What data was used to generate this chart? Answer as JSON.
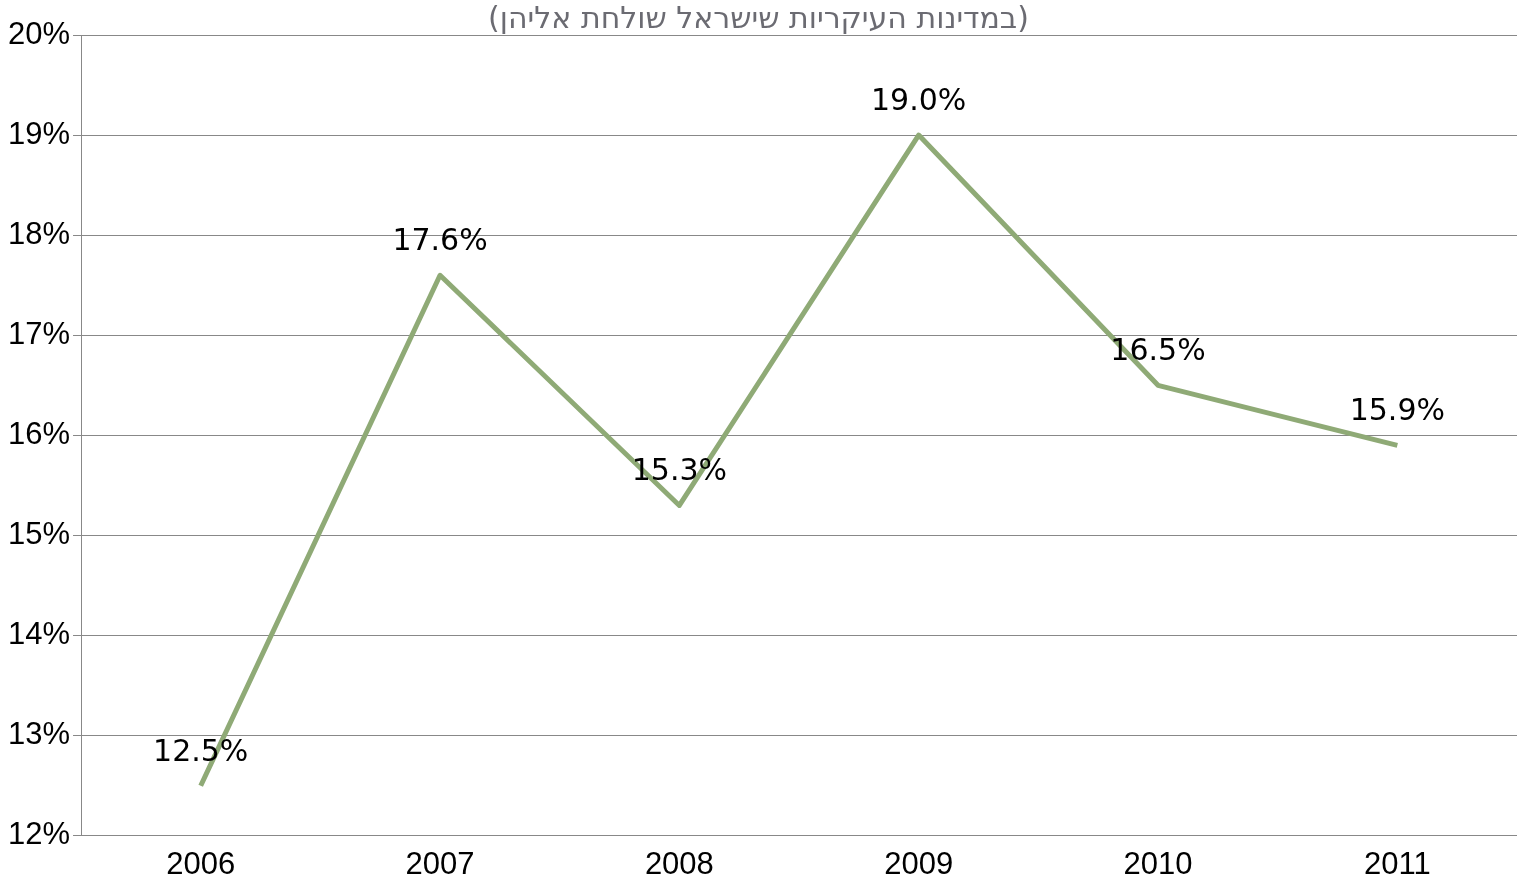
{
  "chart_data": {
    "type": "line",
    "subtitle": "(במדינות העיקריות שישראל שולחת אליהן)",
    "categories": [
      "2006",
      "2007",
      "2008",
      "2009",
      "2010",
      "2011"
    ],
    "series": [
      {
        "color": "#8faa76",
        "values": [
          12.5,
          17.6,
          15.3,
          19.0,
          16.5,
          15.9
        ],
        "value_labels": [
          "12.5%",
          "17.6%",
          "15.3%",
          "19.0%",
          "16.5%",
          "15.9%"
        ]
      }
    ],
    "ylim": [
      12,
      20
    ],
    "yticks": [
      {
        "value": 12,
        "label": "12%"
      },
      {
        "value": 13,
        "label": "13%"
      },
      {
        "value": 14,
        "label": "14%"
      },
      {
        "value": 15,
        "label": "15%"
      },
      {
        "value": 16,
        "label": "16%"
      },
      {
        "value": 17,
        "label": "17%"
      },
      {
        "value": 18,
        "label": "18%"
      },
      {
        "value": 19,
        "label": "19%"
      },
      {
        "value": 20,
        "label": "20%"
      }
    ],
    "grid": "y",
    "legend": false,
    "marker": "none",
    "line_style": "solid"
  }
}
